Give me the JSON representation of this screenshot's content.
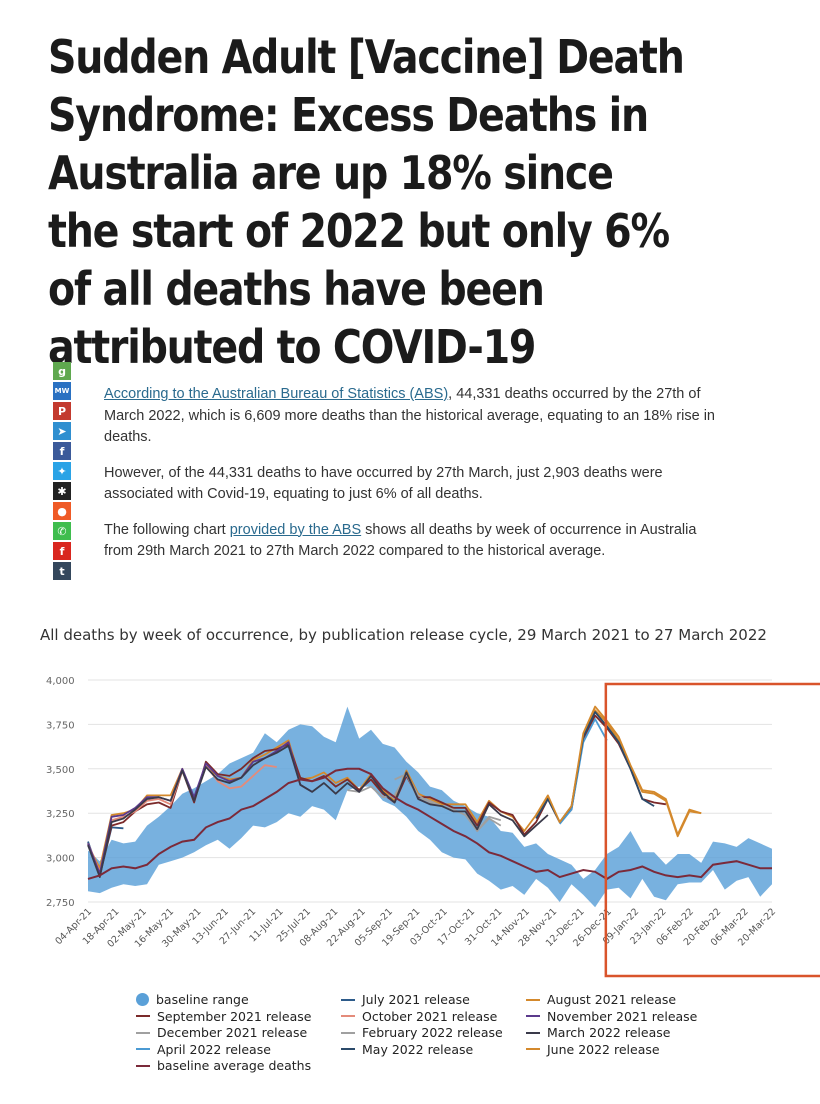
{
  "headline": "Sudden Adult [Vaccine] Death Syndrome: Excess Deaths in Australia are up 18% since the start of 2022 but only 6% of all deaths have been attributed to COVID-19",
  "share_buttons": [
    {
      "name": "gab",
      "glyph": "g",
      "color": "#5fa84f"
    },
    {
      "name": "mewe",
      "glyph": "MW",
      "color": "#2a71c2"
    },
    {
      "name": "parler",
      "glyph": "P",
      "color": "#c33a2e"
    },
    {
      "name": "telegram",
      "glyph": "➤",
      "color": "#2f8fd0"
    },
    {
      "name": "facebook",
      "glyph": "f",
      "color": "#3b5a9a"
    },
    {
      "name": "twitter",
      "glyph": "✦",
      "color": "#2aa3e6"
    },
    {
      "name": "bookmark",
      "glyph": "✱",
      "color": "#222222"
    },
    {
      "name": "reddit",
      "glyph": "●",
      "color": "#ef5a26"
    },
    {
      "name": "whatsapp",
      "glyph": "✆",
      "color": "#3fbd4e"
    },
    {
      "name": "flipboard",
      "glyph": "f",
      "color": "#d9271f"
    },
    {
      "name": "tumblr",
      "glyph": "t",
      "color": "#34475c"
    }
  ],
  "article": {
    "p1_link": "According to the Australian Bureau of Statistics (ABS)",
    "p1_rest": ", 44,331 deaths occurred by the 27th of March 2022, which is 6,609 more deaths than the historical average, equating to an 18% rise in deaths.",
    "p2": "However, of the 44,331 deaths to have occurred by 27th March, just 2,903 deaths were associated with Covid-19, equating to just 6% of all deaths.",
    "p3_before": "The following chart ",
    "p3_link": "provided by the ABS",
    "p3_after": " shows all deaths by week of occurrence in Australia from 29th March 2021 to 27th March 2022 compared to the historical average."
  },
  "chart_title": "All deaths by week of occurrence, by publication release cycle, 29 March 2021 to 27 March 2022",
  "chart_data": {
    "type": "line",
    "title": "All deaths by week of occurrence, by publication release cycle, 29 March 2021 to 27 March 2022",
    "ylim": [
      2750,
      4000
    ],
    "yticks": [
      2750,
      3000,
      3250,
      3500,
      3750,
      4000
    ],
    "ytick_labels": [
      "2,750",
      "3,000",
      "3,250",
      "3,500",
      "3,750",
      "4,000"
    ],
    "xtick_labels": [
      "04-Apr-21",
      "18-Apr-21",
      "02-May-21",
      "16-May-21",
      "30-May-21",
      "13-Jun-21",
      "27-Jun-21",
      "11-Jul-21",
      "25-Jul-21",
      "08-Aug-21",
      "22-Aug-21",
      "05-Sep-21",
      "19-Sep-21",
      "03-Oct-21",
      "17-Oct-21",
      "31-Oct-21",
      "14-Nov-21",
      "28-Nov-21",
      "12-Dec-21",
      "26-Dec-21",
      "09-Jan-22",
      "23-Jan-22",
      "06-Feb-22",
      "20-Feb-22",
      "06-Mar-22",
      "20-Mar-22"
    ],
    "baseline_upper": [
      3040,
      2980,
      3100,
      3080,
      3090,
      3180,
      3230,
      3290,
      3360,
      3390,
      3430,
      3470,
      3530,
      3560,
      3590,
      3700,
      3650,
      3720,
      3750,
      3740,
      3680,
      3650,
      3850,
      3670,
      3720,
      3640,
      3620,
      3540,
      3480,
      3400,
      3380,
      3320,
      3290,
      3250,
      3230,
      3150,
      3140,
      3060,
      3080,
      3020,
      2990,
      2960,
      2880,
      2930,
      3020,
      3060,
      3150,
      3030,
      3030,
      2960,
      3020,
      3020,
      2970,
      3090,
      3080,
      3060,
      3110,
      3080,
      3050
    ],
    "baseline_lower": [
      2810,
      2800,
      2830,
      2850,
      2840,
      2850,
      2960,
      2980,
      3000,
      3030,
      3070,
      3100,
      3050,
      3110,
      3180,
      3170,
      3200,
      3250,
      3230,
      3290,
      3270,
      3210,
      3380,
      3400,
      3400,
      3320,
      3290,
      3230,
      3150,
      3100,
      3030,
      3000,
      2990,
      2910,
      2870,
      2820,
      2840,
      2790,
      2880,
      2830,
      2750,
      2850,
      2790,
      2720,
      2820,
      2830,
      2770,
      2880,
      2780,
      2760,
      2850,
      2860,
      2860,
      2930,
      2820,
      2870,
      2890,
      2780,
      2850
    ],
    "baseline_average": [
      2880,
      2900,
      2940,
      2950,
      2940,
      2960,
      3020,
      3060,
      3090,
      3100,
      3170,
      3200,
      3220,
      3270,
      3290,
      3330,
      3370,
      3420,
      3440,
      3430,
      3450,
      3490,
      3500,
      3500,
      3470,
      3390,
      3340,
      3300,
      3270,
      3230,
      3190,
      3150,
      3120,
      3080,
      3030,
      3010,
      2980,
      2950,
      2920,
      2930,
      2890,
      2910,
      2930,
      2920,
      2880,
      2920,
      2930,
      2950,
      2920,
      2900,
      2890,
      2900,
      2890,
      2960,
      2970,
      2980,
      2960,
      2940,
      2940
    ],
    "series": [
      {
        "name": "July 2021 release",
        "color": "#2d5b8a",
        "values": [
          3090,
          2900,
          3170,
          3165
        ]
      },
      {
        "name": "August 2021 release",
        "color": "#d4892c",
        "values": [
          3070,
          2940,
          3240,
          3250,
          3270,
          3350,
          3350,
          3350,
          3500,
          3330,
          3510,
          3460,
          3440,
          3450,
          3550,
          3580,
          3620,
          3660,
          3440,
          3450,
          3480,
          3420,
          3450,
          3380,
          3470,
          3380,
          3320,
          3490,
          3360,
          3330,
          3300,
          3300,
          3300,
          3200,
          3320,
          3260,
          3230,
          3150,
          3240,
          3340,
          3200,
          3280,
          3680,
          3830,
          3760,
          3660,
          3510,
          3370,
          3360,
          3320,
          3120,
          3260,
          3250
        ]
      },
      {
        "name": "September 2021 release",
        "color": "#7b2a2a",
        "values": [
          3080,
          2900,
          3180,
          3200,
          3260,
          3300,
          3310,
          3280,
          3490,
          3310,
          3540,
          3470,
          3460,
          3500,
          3560,
          3600,
          3610,
          3640,
          3450,
          3430,
          3460,
          3400,
          3440,
          3380,
          3440,
          3360,
          3310,
          3460,
          3340,
          3340,
          3310,
          3280,
          3280,
          3180,
          3310,
          3260,
          3240,
          3130,
          3200,
          3330,
          3200,
          3270,
          3670,
          3800,
          3730,
          3640,
          3500,
          3330,
          3310,
          3300
        ]
      },
      {
        "name": "October 2021 release",
        "color": "#e48b7a",
        "values": [
          3080,
          2920,
          3210,
          3230,
          3260,
          3320,
          3330,
          3300,
          3490,
          3330,
          3520,
          3430,
          3390,
          3400,
          3460,
          3520,
          3510
        ]
      },
      {
        "name": "November 2021 release",
        "color": "#5b3a8c",
        "values": [
          3080,
          2910,
          3230,
          3240,
          3280,
          3340,
          3340,
          3320,
          3500,
          3340,
          3530,
          3460,
          3430,
          3450,
          3540,
          3560,
          3600,
          3650,
          3410,
          3370
        ]
      },
      {
        "name": "December 2021 release",
        "color": "#a0a0a0",
        "values": [
          null,
          null,
          null,
          null,
          null,
          null,
          null,
          null,
          null,
          null,
          null,
          null,
          null,
          null,
          null,
          null,
          null,
          null,
          null,
          null,
          null,
          null,
          null,
          null,
          null,
          null,
          3440,
          3470,
          3350,
          3310,
          3290,
          3270,
          3240,
          3150,
          3220,
          3180
        ]
      },
      {
        "name": "February 2022 release",
        "color": "#a0a0a0",
        "values": [
          null,
          null,
          null,
          null,
          null,
          null,
          null,
          null,
          null,
          null,
          null,
          null,
          null,
          null,
          null,
          null,
          null,
          null,
          null,
          null,
          null,
          null,
          3380,
          3370,
          3400,
          3340,
          3350,
          3470,
          3330,
          3320,
          3290,
          3260,
          3260,
          3150,
          3230,
          3210
        ]
      },
      {
        "name": "March 2022 release",
        "color": "#3a3a4a",
        "values": [
          3070,
          2890,
          3200,
          3220,
          3270,
          3330,
          3340,
          3320,
          3490,
          3320,
          3510,
          3440,
          3420,
          3450,
          3520,
          3560,
          3590,
          3630,
          3410,
          3370,
          3420,
          3360,
          3420,
          3370,
          3460,
          3370,
          3310,
          3480,
          3330,
          3300,
          3290,
          3260,
          3260,
          3160,
          3300,
          3240,
          3210,
          3120,
          3180,
          3240
        ]
      },
      {
        "name": "April 2022 release",
        "color": "#4b9ad3",
        "values": [
          null,
          null,
          null,
          null,
          null,
          null,
          null,
          null,
          null,
          null,
          null,
          null,
          null,
          null,
          null,
          null,
          null,
          null,
          null,
          null,
          null,
          null,
          null,
          null,
          null,
          null,
          null,
          null,
          null,
          null,
          null,
          null,
          null,
          null,
          null,
          null,
          null,
          null,
          null,
          null,
          3190,
          3270,
          3650,
          3780,
          3660
        ]
      },
      {
        "name": "May 2022 release",
        "color": "#2b4a6a",
        "values": [
          null,
          null,
          null,
          null,
          null,
          null,
          null,
          null,
          null,
          null,
          null,
          null,
          null,
          null,
          null,
          null,
          null,
          null,
          null,
          null,
          null,
          null,
          null,
          null,
          null,
          null,
          null,
          null,
          null,
          null,
          null,
          null,
          null,
          null,
          null,
          null,
          null,
          null,
          3220,
          3330,
          3200,
          3290,
          3680,
          3820,
          3740,
          3650,
          3500,
          3330,
          3290
        ]
      },
      {
        "name": "June 2022 release",
        "color": "#d4892c",
        "values": [
          null,
          null,
          null,
          null,
          null,
          null,
          null,
          null,
          null,
          null,
          null,
          null,
          null,
          null,
          null,
          null,
          null,
          null,
          null,
          null,
          null,
          null,
          null,
          null,
          null,
          null,
          null,
          null,
          null,
          null,
          null,
          null,
          null,
          null,
          null,
          null,
          null,
          null,
          3240,
          3350,
          3200,
          3290,
          3700,
          3850,
          3770,
          3680,
          3520,
          3380,
          3370,
          3330,
          3130,
          3270,
          3250
        ]
      }
    ],
    "highlight": {
      "from_label": "26-Dec-21",
      "to_label": "20-Mar-22",
      "color": "#d9542b"
    }
  },
  "legend": [
    {
      "label": "baseline range",
      "type": "dot",
      "color": "#5aa0d8"
    },
    {
      "label": "July 2021 release",
      "type": "line",
      "color": "#2d5b8a"
    },
    {
      "label": "August 2021 release",
      "type": "line",
      "color": "#d4892c"
    },
    {
      "label": "September 2021 release",
      "type": "line",
      "color": "#7b2a2a"
    },
    {
      "label": "October 2021 release",
      "type": "line",
      "color": "#e48b7a"
    },
    {
      "label": "November 2021 release",
      "type": "line",
      "color": "#5b3a8c"
    },
    {
      "label": "December 2021 release",
      "type": "line",
      "color": "#a0a0a0"
    },
    {
      "label": "February 2022 release",
      "type": "line",
      "color": "#a0a0a0"
    },
    {
      "label": "March 2022 release",
      "type": "line",
      "color": "#3a3a4a"
    },
    {
      "label": "April 2022 release",
      "type": "line",
      "color": "#4b9ad3"
    },
    {
      "label": "May 2022 release",
      "type": "line",
      "color": "#2b4a6a"
    },
    {
      "label": "June 2022 release",
      "type": "line",
      "color": "#d4892c"
    },
    {
      "label": "baseline average deaths",
      "type": "line",
      "color": "#7b2a3a"
    }
  ]
}
